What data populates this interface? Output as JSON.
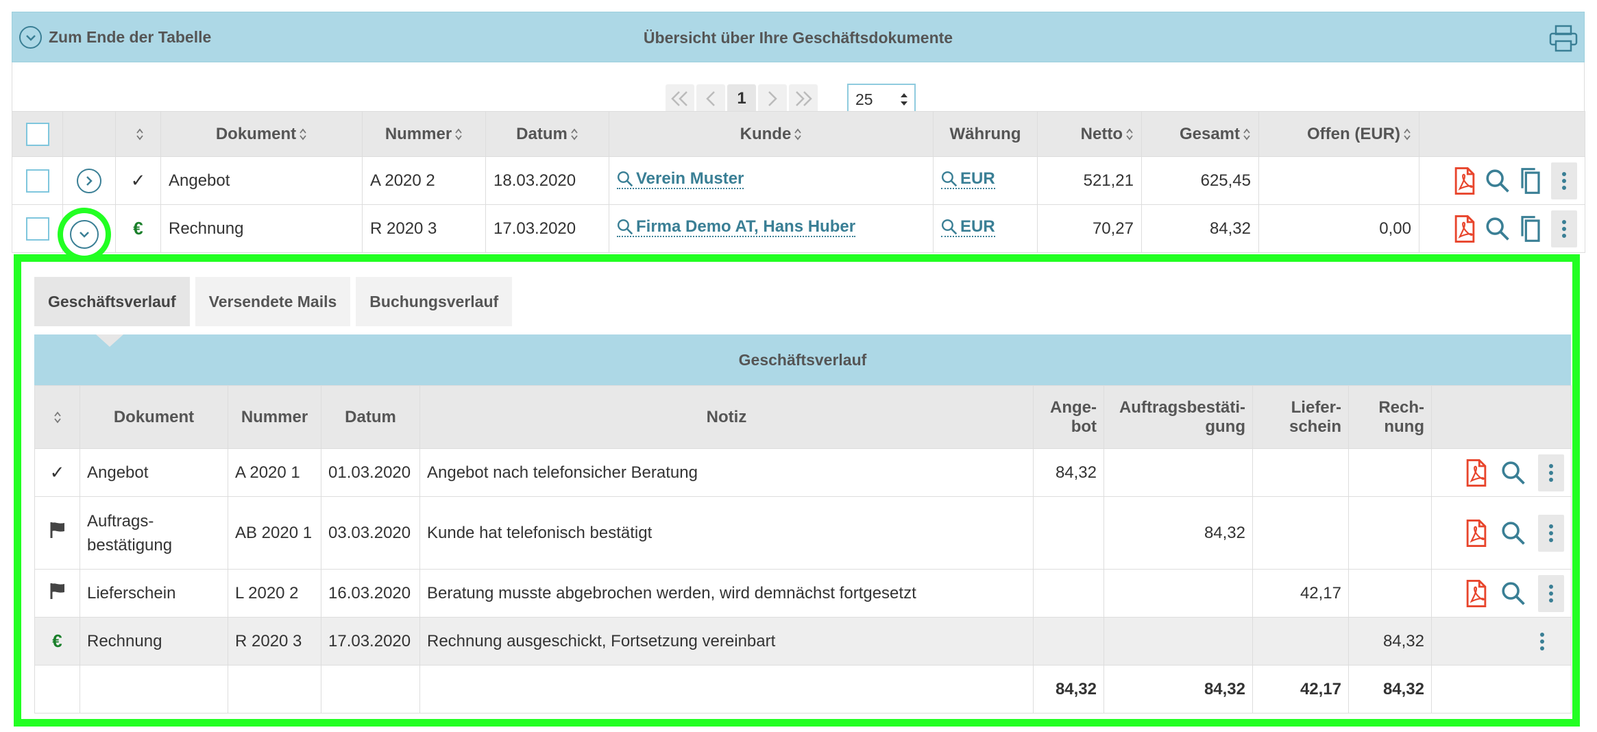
{
  "header": {
    "to_end_label": "Zum Ende der Tabelle",
    "title": "Übersicht über Ihre Geschäftsdokumente"
  },
  "pagination": {
    "current_page": "1",
    "page_size": "25",
    "first_icon": "first-page-icon",
    "prev_icon": "prev-page-icon",
    "next_icon": "next-page-icon",
    "last_icon": "last-page-icon"
  },
  "main_table": {
    "columns": [
      "Dokument",
      "Nummer",
      "Datum",
      "Kunde",
      "Währung",
      "Netto",
      "Gesamt",
      "Offen (EUR)"
    ],
    "rows": [
      {
        "status_icon": "check-icon",
        "status_glyph": "✓",
        "dokument": "Angebot",
        "nummer": "A 2020 2",
        "datum": "18.03.2020",
        "kunde": "Verein Muster",
        "waehrung": "EUR",
        "netto": "521,21",
        "gesamt": "625,45",
        "offen": ""
      },
      {
        "status_icon": "euro-icon",
        "status_glyph": "€",
        "dokument": "Rechnung",
        "nummer": "R 2020 3",
        "datum": "17.03.2020",
        "kunde": "Firma Demo AT, Hans Huber",
        "waehrung": "EUR",
        "netto": "70,27",
        "gesamt": "84,32",
        "offen": "0,00"
      }
    ]
  },
  "detail": {
    "tabs": [
      "Geschäftsverlauf",
      "Versendete Mails",
      "Buchungsverlauf"
    ],
    "active_tab": "Geschäftsverlauf",
    "section_title": "Geschäftsverlauf",
    "columns": {
      "dokument": "Dokument",
      "nummer": "Nummer",
      "datum": "Datum",
      "notiz": "Notiz",
      "angebot_1": "Ange-",
      "angebot_2": "bot",
      "ab_1": "Auftragsbestäti-",
      "ab_2": "gung",
      "ls_1": "Liefer-",
      "ls_2": "schein",
      "re_1": "Rech-",
      "re_2": "nung"
    },
    "rows": [
      {
        "status_icon": "check-icon",
        "dokument_1": "Angebot",
        "dokument_2": "",
        "nummer": "A 2020 1",
        "datum": "01.03.2020",
        "notiz": "Angebot nach telefonsicher Beratung",
        "angebot": "84,32",
        "ab": "",
        "ls": "",
        "re": ""
      },
      {
        "status_icon": "flag-icon",
        "dokument_1": "Auftrags-",
        "dokument_2": "bestätigung",
        "nummer": "AB 2020 1",
        "datum": "03.03.2020",
        "notiz": "Kunde hat telefonisch bestätigt",
        "angebot": "",
        "ab": "84,32",
        "ls": "",
        "re": ""
      },
      {
        "status_icon": "flag-icon",
        "dokument_1": "Lieferschein",
        "dokument_2": "",
        "nummer": "L 2020 2",
        "datum": "16.03.2020",
        "notiz": "Beratung musste abgebrochen werden, wird demnächst fortgesetzt",
        "angebot": "",
        "ab": "",
        "ls": "42,17",
        "re": ""
      },
      {
        "status_icon": "euro-icon",
        "dokument_1": "Rechnung",
        "dokument_2": "",
        "nummer": "R 2020 3",
        "datum": "17.03.2020",
        "notiz": "Rechnung ausgeschickt, Fortsetzung vereinbart",
        "angebot": "",
        "ab": "",
        "ls": "",
        "re": "84,32"
      }
    ],
    "totals": {
      "angebot": "84,32",
      "ab": "84,32",
      "ls": "42,17",
      "re": "84,32"
    }
  },
  "colors": {
    "accent": "#add8e6",
    "link": "#3a7f95",
    "highlight": "#22ff22",
    "pdf": "#e8452c",
    "euro": "#1a7f2a"
  }
}
